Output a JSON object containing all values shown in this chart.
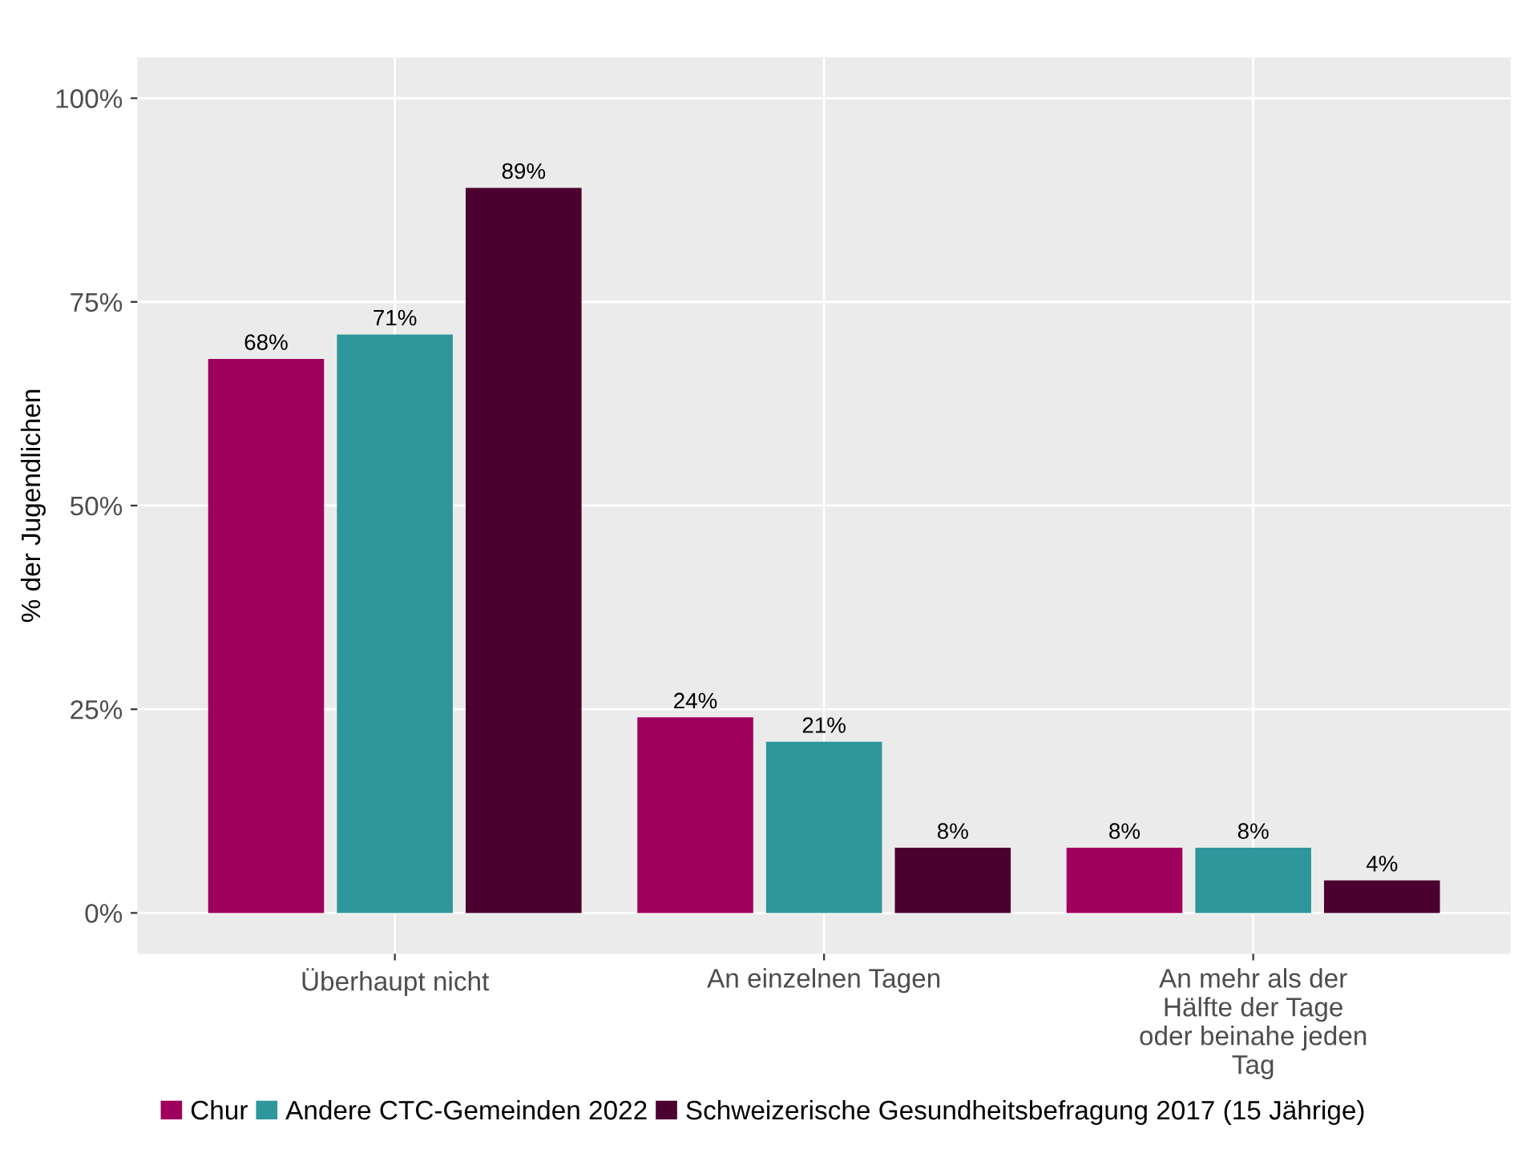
{
  "chart_data": {
    "type": "bar",
    "categories": [
      "Überhaupt nicht",
      "An einzelnen Tagen",
      "An mehr als der\nHälfte der Tage\noder beinahe jeden\nTag"
    ],
    "ylabel": "% der Jugendlichen",
    "series": [
      {
        "name": "Chur",
        "color": "#9e005d",
        "values": [
          68,
          24,
          8
        ],
        "value_labels": [
          "68%",
          "24%",
          "8%"
        ]
      },
      {
        "name": "Andere CTC-Gemeinden 2022",
        "color": "#2e979b",
        "values": [
          71,
          21,
          8
        ],
        "value_labels": [
          "71%",
          "21%",
          "8%"
        ]
      },
      {
        "name": "Schweizerische Gesundheitsbefragung 2017 (15 Jährige)",
        "color": "#4b0030",
        "values": [
          89,
          8,
          4
        ],
        "value_labels": [
          "89%",
          "8%",
          "4%"
        ]
      }
    ],
    "ylim": [
      -5,
      105
    ],
    "yticks": [
      {
        "value": 0,
        "label": "0%"
      },
      {
        "value": 25,
        "label": "25%"
      },
      {
        "value": 50,
        "label": "50%"
      },
      {
        "value": 75,
        "label": "75%"
      },
      {
        "value": 100,
        "label": "100%"
      }
    ],
    "grid": true,
    "legend": "bottom"
  }
}
